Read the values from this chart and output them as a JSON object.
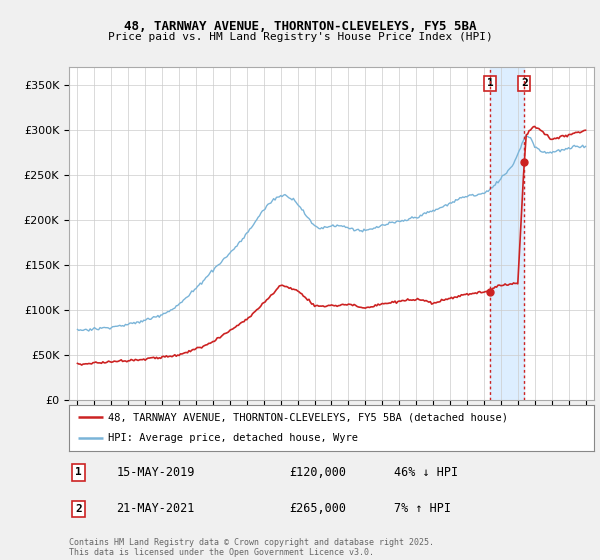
{
  "title_line1": "48, TARNWAY AVENUE, THORNTON-CLEVELEYS, FY5 5BA",
  "title_line2": "Price paid vs. HM Land Registry's House Price Index (HPI)",
  "ylabel_ticks": [
    "£0",
    "£50K",
    "£100K",
    "£150K",
    "£200K",
    "£250K",
    "£300K",
    "£350K"
  ],
  "ytick_values": [
    0,
    50000,
    100000,
    150000,
    200000,
    250000,
    300000,
    350000
  ],
  "ylim": [
    0,
    370000
  ],
  "xlim_start": 1994.5,
  "xlim_end": 2025.5,
  "hpi_color": "#7ab4d8",
  "price_color": "#cc2222",
  "vline_color": "#cc2222",
  "shade_color": "#ddeeff",
  "transaction1": {
    "date_label": "15-MAY-2019",
    "price_str": "£120,000",
    "label": "46% ↓ HPI",
    "year": 2019.37,
    "price_val": 120000,
    "marker_num": "1"
  },
  "transaction2": {
    "date_label": "21-MAY-2021",
    "price_str": "£265,000",
    "label": "7% ↑ HPI",
    "year": 2021.38,
    "price_val": 265000,
    "marker_num": "2"
  },
  "legend_entry1": "48, TARNWAY AVENUE, THORNTON-CLEVELEYS, FY5 5BA (detached house)",
  "legend_entry2": "HPI: Average price, detached house, Wyre",
  "footnote": "Contains HM Land Registry data © Crown copyright and database right 2025.\nThis data is licensed under the Open Government Licence v3.0.",
  "background_color": "#f0f0f0",
  "plot_background": "#ffffff",
  "grid_color": "#cccccc",
  "xticks": [
    1995,
    1996,
    1997,
    1998,
    1999,
    2000,
    2001,
    2002,
    2003,
    2004,
    2005,
    2006,
    2007,
    2008,
    2009,
    2010,
    2011,
    2012,
    2013,
    2014,
    2015,
    2016,
    2017,
    2018,
    2019,
    2020,
    2021,
    2022,
    2023,
    2024,
    2025
  ]
}
